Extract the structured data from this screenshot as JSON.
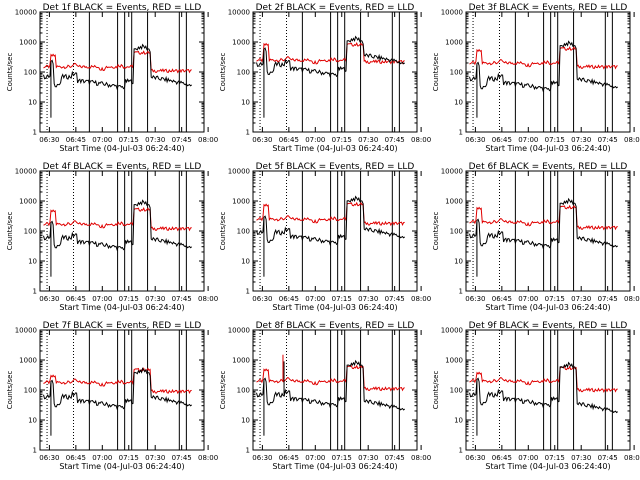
{
  "colors": {
    "events": "#000000",
    "lld": "#e00000",
    "axis": "#000000",
    "background": "#ffffff"
  },
  "chart_data": [
    {
      "panel": "1f",
      "type": "line",
      "title": "Det 1f BLACK = Events, RED = LLD",
      "xlabel": "Start Time (04-Jul-03 06:24:40)",
      "ylabel": "Counts/sec",
      "yscale": "log",
      "ylim": [
        1,
        10000
      ],
      "xlim_minutes": [
        0,
        93
      ],
      "x_tick_labels": [
        "06:30",
        "06:45",
        "07:00",
        "07:15",
        "07:30",
        "07:45",
        "08:00"
      ],
      "y_tick_labels": [
        "1",
        "10",
        "100",
        "1000",
        "10000"
      ],
      "red_base": 150,
      "red_bump": 350,
      "black_base": 70,
      "black_top": 700,
      "black_end": 35,
      "red_end": 110,
      "extra_spike_at": null
    },
    {
      "panel": "2f",
      "type": "line",
      "title": "Det 2f BLACK = Events, RED = LLD",
      "xlabel": "Start Time (04-Jul-03 06:24:40)",
      "ylabel": "Counts/sec",
      "yscale": "log",
      "ylim": [
        1,
        10000
      ],
      "xlim_minutes": [
        0,
        93
      ],
      "x_tick_labels": [
        "06:30",
        "06:45",
        "07:00",
        "07:15",
        "07:30",
        "07:45",
        "08:00"
      ],
      "y_tick_labels": [
        "1",
        "10",
        "100",
        "1000",
        "10000"
      ],
      "red_base": 250,
      "red_bump": 800,
      "black_base": 180,
      "black_top": 1300,
      "black_end": 190,
      "red_end": 220,
      "extra_spike_at": null
    },
    {
      "panel": "3f",
      "type": "line",
      "title": "Det 3f BLACK = Events, RED = LLD",
      "xlabel": "Start Time (04-Jul-03 06:24:40)",
      "ylabel": "Counts/sec",
      "yscale": "log",
      "ylim": [
        1,
        10000
      ],
      "xlim_minutes": [
        0,
        93
      ],
      "x_tick_labels": [
        "06:30",
        "06:45",
        "07:00",
        "07:15",
        "07:30",
        "07:45",
        "08:00"
      ],
      "y_tick_labels": [
        "1",
        "10",
        "100",
        "1000",
        "10000"
      ],
      "red_base": 200,
      "red_bump": 500,
      "black_base": 60,
      "black_top": 900,
      "black_end": 30,
      "red_end": 150,
      "extra_spike_at": null
    },
    {
      "panel": "4f",
      "type": "line",
      "title": "Det 4f BLACK = Events, RED = LLD",
      "xlabel": "Start Time (04-Jul-03 06:24:40)",
      "ylabel": "Counts/sec",
      "yscale": "log",
      "ylim": [
        1,
        10000
      ],
      "xlim_minutes": [
        0,
        93
      ],
      "x_tick_labels": [
        "06:30",
        "06:45",
        "07:00",
        "07:15",
        "07:30",
        "07:45",
        "08:00"
      ],
      "y_tick_labels": [
        "1",
        "10",
        "100",
        "1000",
        "10000"
      ],
      "red_base": 170,
      "red_bump": 450,
      "black_base": 60,
      "black_top": 900,
      "black_end": 28,
      "red_end": 120,
      "extra_spike_at": null
    },
    {
      "panel": "5f",
      "type": "line",
      "title": "Det 5f BLACK = Events, RED = LLD",
      "xlabel": "Start Time (04-Jul-03 06:24:40)",
      "ylabel": "Counts/sec",
      "yscale": "log",
      "ylim": [
        1,
        10000
      ],
      "xlim_minutes": [
        0,
        93
      ],
      "x_tick_labels": [
        "06:30",
        "06:45",
        "07:00",
        "07:15",
        "07:30",
        "07:45",
        "08:00"
      ],
      "y_tick_labels": [
        "1",
        "10",
        "100",
        "1000",
        "10000"
      ],
      "red_base": 250,
      "red_bump": 700,
      "black_base": 90,
      "black_top": 1200,
      "black_end": 60,
      "red_end": 180,
      "extra_spike_at": null
    },
    {
      "panel": "6f",
      "type": "line",
      "title": "Det 6f BLACK = Events, RED = LLD",
      "xlabel": "Start Time (04-Jul-03 06:24:40)",
      "ylabel": "Counts/sec",
      "yscale": "log",
      "ylim": [
        1,
        10000
      ],
      "xlim_minutes": [
        0,
        93
      ],
      "x_tick_labels": [
        "06:30",
        "06:45",
        "07:00",
        "07:15",
        "07:30",
        "07:45",
        "08:00"
      ],
      "y_tick_labels": [
        "1",
        "10",
        "100",
        "1000",
        "10000"
      ],
      "red_base": 200,
      "red_bump": 550,
      "black_base": 70,
      "black_top": 1000,
      "black_end": 30,
      "red_end": 130,
      "extra_spike_at": null
    },
    {
      "panel": "7f",
      "type": "line",
      "title": "Det 7f BLACK = Events, RED = LLD",
      "xlabel": "Start Time (04-Jul-03 06:24:40)",
      "ylabel": "Counts/sec",
      "yscale": "log",
      "ylim": [
        1,
        10000
      ],
      "xlim_minutes": [
        0,
        93
      ],
      "x_tick_labels": [
        "06:30",
        "06:45",
        "07:00",
        "07:15",
        "07:30",
        "07:45",
        "08:00"
      ],
      "y_tick_labels": [
        "1",
        "10",
        "100",
        "1000",
        "10000"
      ],
      "red_base": 180,
      "red_bump": 280,
      "black_base": 60,
      "black_top": 450,
      "black_end": 30,
      "red_end": 90,
      "extra_spike_at": null
    },
    {
      "panel": "8f",
      "type": "line",
      "title": "Det 8f BLACK = Events, RED = LLD",
      "xlabel": "Start Time (04-Jul-03 06:24:40)",
      "ylabel": "Counts/sec",
      "yscale": "log",
      "ylim": [
        1,
        10000
      ],
      "xlim_minutes": [
        0,
        93
      ],
      "x_tick_labels": [
        "06:30",
        "06:45",
        "07:00",
        "07:15",
        "07:30",
        "07:45",
        "08:00"
      ],
      "y_tick_labels": [
        "1",
        "10",
        "100",
        "1000",
        "10000"
      ],
      "red_base": 200,
      "red_bump": 450,
      "black_base": 70,
      "black_top": 800,
      "black_end": 22,
      "red_end": 110,
      "extra_spike_at": 17
    },
    {
      "panel": "9f",
      "type": "line",
      "title": "Det 9f BLACK = Events, RED = LLD",
      "xlabel": "Start Time (04-Jul-03 06:24:40)",
      "ylabel": "Counts/sec",
      "yscale": "log",
      "ylim": [
        1,
        10000
      ],
      "xlim_minutes": [
        0,
        93
      ],
      "x_tick_labels": [
        "06:30",
        "06:45",
        "07:00",
        "07:15",
        "07:30",
        "07:45",
        "08:00"
      ],
      "y_tick_labels": [
        "1",
        "10",
        "100",
        "1000",
        "10000"
      ],
      "red_base": 200,
      "red_bump": 350,
      "black_base": 70,
      "black_top": 700,
      "black_end": 18,
      "red_end": 100,
      "extra_spike_at": null
    }
  ]
}
